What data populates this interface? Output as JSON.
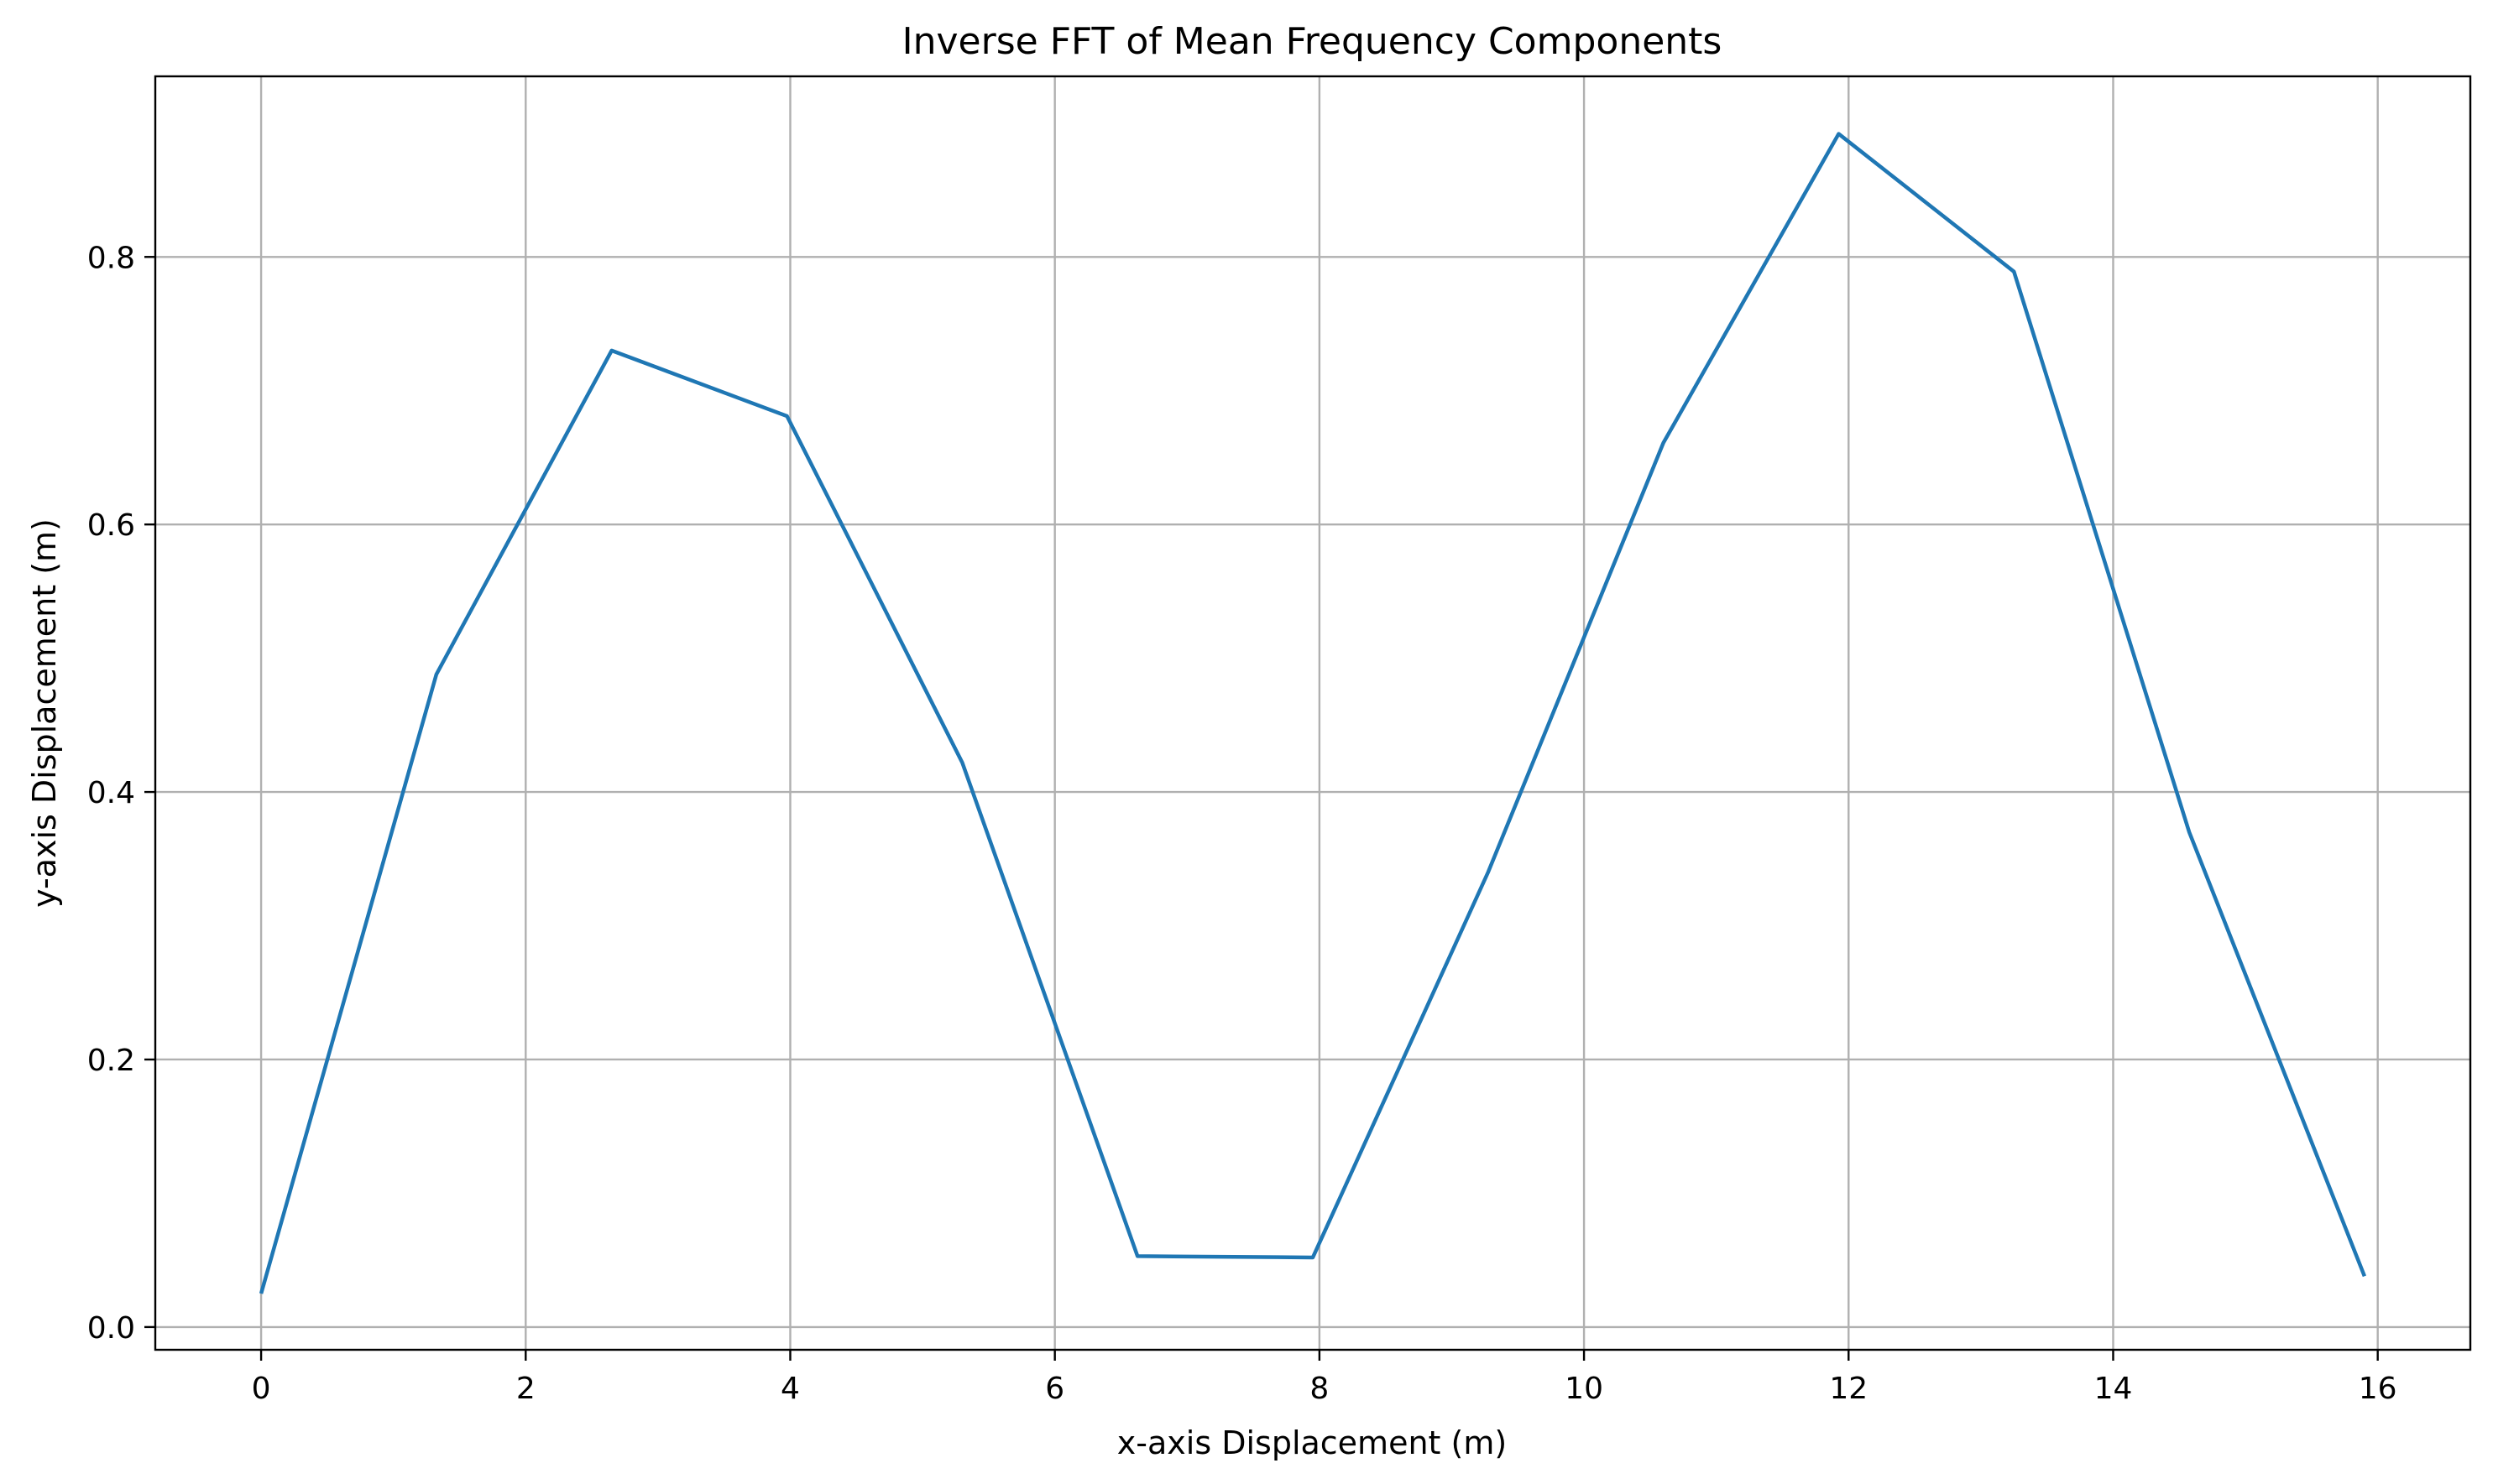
{
  "chart_data": {
    "type": "line",
    "title": "Inverse FFT of Mean Frequency Components",
    "xlabel": "x-axis Displacement (m)",
    "ylabel": "y-axis Displacement (m)",
    "xlim": [
      -0.8,
      16.7
    ],
    "ylim": [
      -0.017,
      0.935
    ],
    "grid": true,
    "xticks": [
      0,
      2,
      4,
      6,
      8,
      10,
      12,
      14,
      16
    ],
    "yticks": [
      0.0,
      0.2,
      0.4,
      0.6,
      0.8
    ],
    "xtick_labels": [
      "0",
      "2",
      "4",
      "6",
      "8",
      "10",
      "12",
      "14",
      "16"
    ],
    "ytick_labels": [
      "0.0",
      "0.2",
      "0.4",
      "0.6",
      "0.8"
    ],
    "series": [
      {
        "color": "#1f77b4",
        "x": [
          0.0,
          1.325,
          2.65,
          3.975,
          5.3,
          6.625,
          7.95,
          9.275,
          10.6,
          11.925,
          13.25,
          14.575,
          15.9
        ],
        "y": [
          0.025,
          0.488,
          0.73,
          0.681,
          0.422,
          0.053,
          0.052,
          0.34,
          0.661,
          0.892,
          0.789,
          0.37,
          0.038
        ]
      }
    ]
  }
}
